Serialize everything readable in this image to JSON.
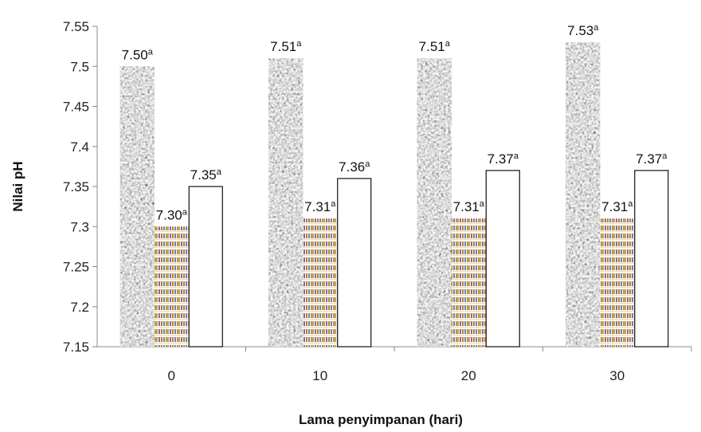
{
  "chart_data": {
    "type": "bar",
    "title": "",
    "xlabel": "Lama penyimpanan (hari)",
    "ylabel": "Nilai pH",
    "ylim": [
      7.15,
      7.55
    ],
    "yticks": [
      "7.15",
      "7.2",
      "7.25",
      "7.3",
      "7.35",
      "7.4",
      "7.45",
      "7.5",
      "7.55"
    ],
    "categories": [
      "0",
      "10",
      "20",
      "30"
    ],
    "grid": false,
    "legend": "none",
    "series": [
      {
        "pattern": "granite",
        "values": [
          7.5,
          7.51,
          7.51,
          7.53
        ],
        "labels": [
          "7.50",
          "7.51",
          "7.51",
          "7.53"
        ],
        "superscripts": [
          "a",
          "a",
          "a",
          "a"
        ]
      },
      {
        "pattern": "brick-stripes",
        "values": [
          7.3,
          7.31,
          7.31,
          7.31
        ],
        "labels": [
          "7.30",
          "7.31",
          "7.31",
          "7.31"
        ],
        "superscripts": [
          "a",
          "a",
          "a",
          "a"
        ]
      },
      {
        "pattern": "white",
        "values": [
          7.35,
          7.36,
          7.37,
          7.37
        ],
        "labels": [
          "7.35",
          "7.36",
          "7.37",
          "7.37"
        ],
        "superscripts": [
          "a",
          "a",
          "a",
          "a"
        ]
      }
    ]
  }
}
